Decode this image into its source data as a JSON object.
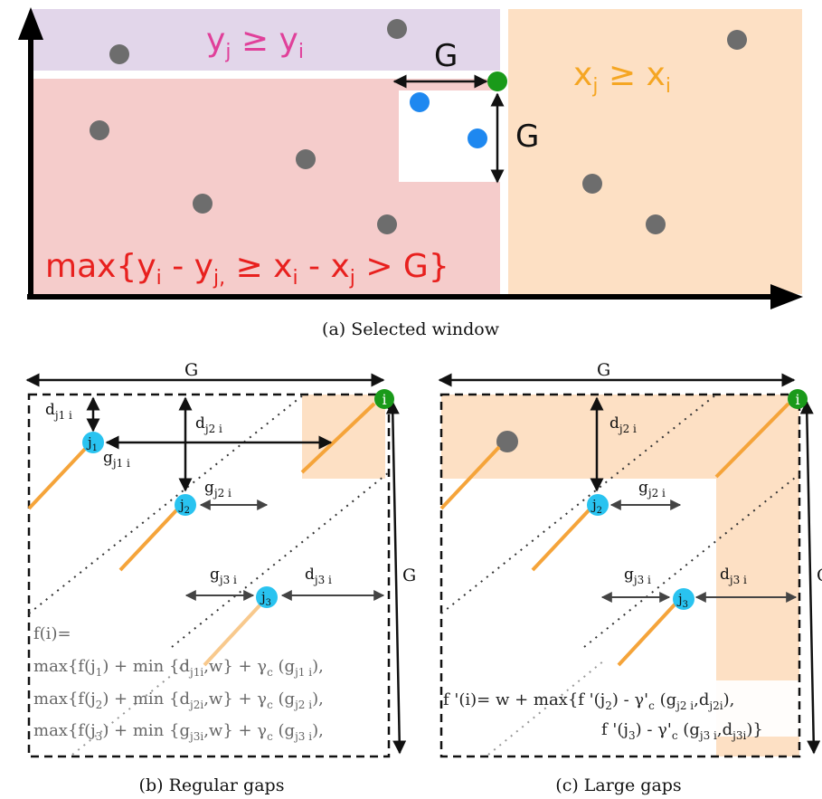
{
  "panel_a": {
    "top_region_label": {
      "base1": "y",
      "sub1": "j",
      "op": " ≥ ",
      "base2": "y",
      "sub2": "i"
    },
    "right_region_label": {
      "base1": "x",
      "sub1": "j",
      "op": " ≥ ",
      "base2": "x",
      "sub2": "i"
    },
    "left_region_label": {
      "p1": "max{y",
      "s1": "i",
      "p2": " - y",
      "s2": "j,",
      "p3": " ≥ x",
      "s3": "i",
      "p4": " - x",
      "s4": "j",
      "p5": " > G}"
    },
    "gap_label_horizontal": "G",
    "gap_label_vertical": "G",
    "caption": "(a) Selected window"
  },
  "panel_b": {
    "top_gap_label": "G",
    "right_gap_label": "G",
    "node_i": "i",
    "node_j1": {
      "base": "j",
      "sub": "1"
    },
    "node_j2": {
      "base": "j",
      "sub": "2"
    },
    "node_j3": {
      "base": "j",
      "sub": "3"
    },
    "d_j1": {
      "base": "d",
      "sub": "j1 i"
    },
    "d_j2": {
      "base": "d",
      "sub": "j2 i"
    },
    "d_j3": {
      "base": "d",
      "sub": "j3 i"
    },
    "g_j1": {
      "base": "g",
      "sub": "j1 i"
    },
    "g_j2": {
      "base": "g",
      "sub": "j2 i"
    },
    "g_j3": {
      "base": "g",
      "sub": "j3 i"
    },
    "formula": {
      "line1": "f(i)=",
      "line2": {
        "a": "max{f(j",
        "a_sub": "1",
        "b": ") + min {d",
        "b_sub": "j1i",
        "c": ",w} + γ",
        "c_sub": "c",
        "d": " (g",
        "d_sub": "j1 i",
        "e": "),"
      },
      "line3": {
        "a": "max{f(j",
        "a_sub": "2",
        "b": ") + min {d",
        "b_sub": "j2i",
        "c": ",w} + γ",
        "c_sub": "c",
        "d": " (g",
        "d_sub": "j2 i",
        "e": "),"
      },
      "line4": {
        "a": "max{f(j",
        "a_sub": "3",
        "b": ") + min {g",
        "b_sub": "j3i",
        "c": ",w} + γ",
        "c_sub": "c",
        "d": " (g",
        "d_sub": "j3 i",
        "e": "),"
      }
    },
    "caption": "(b) Regular gaps"
  },
  "panel_c": {
    "top_gap_label": "G",
    "right_gap_label": "G",
    "node_i": "i",
    "node_j2": {
      "base": "j",
      "sub": "2"
    },
    "node_j3": {
      "base": "j",
      "sub": "3"
    },
    "d_j2": {
      "base": "d",
      "sub": "j2 i"
    },
    "d_j3": {
      "base": "d",
      "sub": "j3 i"
    },
    "g_j2": {
      "base": "g",
      "sub": "j2 i"
    },
    "g_j3": {
      "base": "g",
      "sub": "j3 i"
    },
    "formula": {
      "line1": {
        "a": "f '(i)= w + max{f '(j",
        "a_sub": "2",
        "b": ") - γ'",
        "b_sub": "c",
        "c": " (g",
        "c_sub": "j2 i",
        "d": ",d",
        "d_sub": "j2i",
        "e": "),"
      },
      "line2": {
        "a": "f '(j",
        "a_sub": "3",
        "b": ") - γ'",
        "b_sub": "c",
        "c": " (g",
        "c_sub": "j3 i",
        "d": ",d",
        "d_sub": "j3i",
        "e": ")}"
      }
    },
    "caption": "(c) Large gaps"
  },
  "colors": {
    "purple_region": "#e2d6ea",
    "pink_region": "#f5cccb",
    "orange_region": "#fde0c4",
    "magenta_text": "#e0409a",
    "orange_text": "#f5a623",
    "red_text": "#e8201e",
    "grey_point": "#6d6d6d",
    "blue_point": "#1e88f0",
    "green_point": "#1a9a1a",
    "cyan_node": "#29c3f0",
    "orange_line": "#f5a43a"
  }
}
